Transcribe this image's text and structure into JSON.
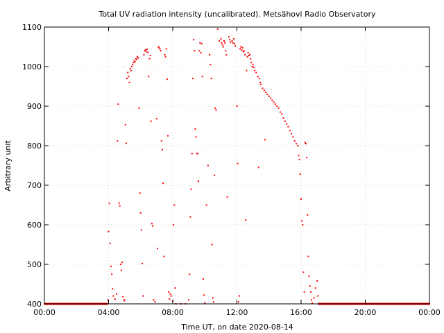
{
  "chart_data": {
    "type": "scatter",
    "title": "Total UV radiation intensity (uncalibrated). Metsähovi Radio Observatory",
    "xlabel": "Time UT, on date 2020-08-14",
    "ylabel": "Arbitrary unit",
    "xlim": [
      0,
      24
    ],
    "ylim": [
      400,
      1100
    ],
    "x_tick_values": [
      0,
      4,
      8,
      12,
      16,
      20,
      24
    ],
    "x_tick_labels": [
      "00:00",
      "04:00",
      "08:00",
      "12:00",
      "16:00",
      "20:00",
      "00:00"
    ],
    "y_tick_values": [
      400,
      500,
      600,
      700,
      800,
      900,
      1000,
      1100
    ],
    "y_tick_labels": [
      "400",
      "500",
      "600",
      "700",
      "800",
      "900",
      "1000",
      "1100"
    ],
    "grid": true,
    "marker_color": "#ff0000",
    "series": [
      {
        "points": [
          [
            0.0,
            400
          ],
          [
            0.5,
            400
          ],
          [
            1.0,
            400
          ],
          [
            1.5,
            400
          ],
          [
            2.0,
            400
          ],
          [
            2.5,
            400
          ],
          [
            3.0,
            400
          ],
          [
            3.5,
            400
          ],
          [
            3.9,
            400
          ],
          [
            3.95,
            410
          ],
          [
            4.0,
            583
          ],
          [
            4.05,
            654
          ],
          [
            4.1,
            553
          ],
          [
            4.15,
            495
          ],
          [
            4.2,
            475
          ],
          [
            4.25,
            438
          ],
          [
            4.3,
            420
          ],
          [
            4.4,
            412
          ],
          [
            4.5,
            425
          ],
          [
            4.55,
            812
          ],
          [
            4.6,
            905
          ],
          [
            4.65,
            655
          ],
          [
            4.7,
            648
          ],
          [
            4.75,
            500
          ],
          [
            4.8,
            485
          ],
          [
            4.85,
            505
          ],
          [
            4.9,
            418
          ],
          [
            4.95,
            408
          ],
          [
            5.0,
            410
          ],
          [
            5.05,
            853
          ],
          [
            5.1,
            806
          ],
          [
            5.15,
            970
          ],
          [
            5.2,
            985
          ],
          [
            5.25,
            975
          ],
          [
            5.3,
            960
          ],
          [
            5.35,
            995
          ],
          [
            5.4,
            990
          ],
          [
            5.45,
            1000
          ],
          [
            5.5,
            1005
          ],
          [
            5.55,
            1010
          ],
          [
            5.6,
            1015
          ],
          [
            5.65,
            1012
          ],
          [
            5.7,
            1020
          ],
          [
            5.75,
            1018
          ],
          [
            5.8,
            1025
          ],
          [
            5.85,
            1022
          ],
          [
            5.9,
            895
          ],
          [
            5.95,
            680
          ],
          [
            6.0,
            630
          ],
          [
            6.05,
            587
          ],
          [
            6.1,
            502
          ],
          [
            6.15,
            420
          ],
          [
            6.2,
            1030
          ],
          [
            6.25,
            1040
          ],
          [
            6.3,
            1042
          ],
          [
            6.35,
            1038
          ],
          [
            6.4,
            1044
          ],
          [
            6.45,
            1036
          ],
          [
            6.5,
            975
          ],
          [
            6.55,
            1020
          ],
          [
            6.6,
            1028
          ],
          [
            6.65,
            862
          ],
          [
            6.7,
            603
          ],
          [
            6.75,
            597
          ],
          [
            6.8,
            410
          ],
          [
            6.9,
            405
          ],
          [
            7.0,
            868
          ],
          [
            7.05,
            540
          ],
          [
            7.1,
            1050
          ],
          [
            7.15,
            1048
          ],
          [
            7.2,
            1045
          ],
          [
            7.25,
            1040
          ],
          [
            7.3,
            812
          ],
          [
            7.35,
            790
          ],
          [
            7.4,
            705
          ],
          [
            7.45,
            520
          ],
          [
            7.5,
            1030
          ],
          [
            7.55,
            1025
          ],
          [
            7.6,
            1045
          ],
          [
            7.65,
            968
          ],
          [
            7.7,
            825
          ],
          [
            7.75,
            430
          ],
          [
            7.8,
            412
          ],
          [
            7.85,
            425
          ],
          [
            7.9,
            420
          ],
          [
            8.0,
            407
          ],
          [
            8.05,
            600
          ],
          [
            8.1,
            650
          ],
          [
            8.15,
            440
          ],
          [
            8.2,
            400
          ],
          [
            8.5,
            400
          ],
          [
            8.8,
            400
          ],
          [
            9.0,
            410
          ],
          [
            9.05,
            475
          ],
          [
            9.1,
            620
          ],
          [
            9.15,
            690
          ],
          [
            9.2,
            780
          ],
          [
            9.25,
            970
          ],
          [
            9.3,
            1068
          ],
          [
            9.35,
            1040
          ],
          [
            9.4,
            842
          ],
          [
            9.45,
            822
          ],
          [
            9.5,
            780
          ],
          [
            9.55,
            780
          ],
          [
            9.6,
            710
          ],
          [
            9.65,
            1040
          ],
          [
            9.7,
            1060
          ],
          [
            9.75,
            1035
          ],
          [
            9.8,
            1058
          ],
          [
            9.85,
            975
          ],
          [
            9.9,
            463
          ],
          [
            9.95,
            422
          ],
          [
            10.0,
            402
          ],
          [
            10.1,
            650
          ],
          [
            10.2,
            750
          ],
          [
            10.3,
            1030
          ],
          [
            10.35,
            1005
          ],
          [
            10.4,
            970
          ],
          [
            10.45,
            550
          ],
          [
            10.5,
            415
          ],
          [
            10.55,
            405
          ],
          [
            10.6,
            725
          ],
          [
            10.65,
            895
          ],
          [
            10.7,
            890
          ],
          [
            10.8,
            1095
          ],
          [
            10.9,
            1065
          ],
          [
            11.0,
            1070
          ],
          [
            11.05,
            1060
          ],
          [
            11.1,
            1055
          ],
          [
            11.15,
            1050
          ],
          [
            11.2,
            1065
          ],
          [
            11.25,
            1060
          ],
          [
            11.3,
            1040
          ],
          [
            11.35,
            1030
          ],
          [
            11.4,
            670
          ],
          [
            11.5,
            1075
          ],
          [
            11.55,
            1068
          ],
          [
            11.6,
            1062
          ],
          [
            11.7,
            1065
          ],
          [
            11.75,
            1060
          ],
          [
            11.8,
            1070
          ],
          [
            11.85,
            1058
          ],
          [
            11.9,
            1052
          ],
          [
            12.0,
            900
          ],
          [
            12.05,
            755
          ],
          [
            12.1,
            405
          ],
          [
            12.15,
            420
          ],
          [
            12.2,
            1045
          ],
          [
            12.25,
            1050
          ],
          [
            12.3,
            1042
          ],
          [
            12.35,
            1048
          ],
          [
            12.4,
            1038
          ],
          [
            12.45,
            1040
          ],
          [
            12.5,
            1030
          ],
          [
            12.55,
            612
          ],
          [
            12.6,
            990
          ],
          [
            12.65,
            1025
          ],
          [
            12.7,
            1035
          ],
          [
            12.75,
            1028
          ],
          [
            12.8,
            1030
          ],
          [
            12.85,
            1020
          ],
          [
            12.9,
            1010
          ],
          [
            12.95,
            1000
          ],
          [
            13.0,
            1005
          ],
          [
            13.05,
            998
          ],
          [
            13.1,
            990
          ],
          [
            13.2,
            985
          ],
          [
            13.3,
            975
          ],
          [
            13.35,
            745
          ],
          [
            13.4,
            970
          ],
          [
            13.45,
            960
          ],
          [
            13.5,
            955
          ],
          [
            13.6,
            945
          ],
          [
            13.7,
            940
          ],
          [
            13.75,
            815
          ],
          [
            13.8,
            935
          ],
          [
            13.9,
            930
          ],
          [
            14.0,
            925
          ],
          [
            14.1,
            920
          ],
          [
            14.2,
            915
          ],
          [
            14.3,
            910
          ],
          [
            14.4,
            905
          ],
          [
            14.5,
            900
          ],
          [
            14.6,
            895
          ],
          [
            14.7,
            885
          ],
          [
            14.8,
            880
          ],
          [
            14.9,
            870
          ],
          [
            15.0,
            862
          ],
          [
            15.1,
            855
          ],
          [
            15.2,
            848
          ],
          [
            15.3,
            838
          ],
          [
            15.4,
            830
          ],
          [
            15.5,
            822
          ],
          [
            15.6,
            812
          ],
          [
            15.7,
            805
          ],
          [
            15.8,
            800
          ],
          [
            15.85,
            775
          ],
          [
            15.9,
            765
          ],
          [
            15.95,
            728
          ],
          [
            16.0,
            665
          ],
          [
            16.05,
            610
          ],
          [
            16.1,
            600
          ],
          [
            16.15,
            480
          ],
          [
            16.2,
            430
          ],
          [
            16.25,
            808
          ],
          [
            16.3,
            805
          ],
          [
            16.35,
            770
          ],
          [
            16.4,
            625
          ],
          [
            16.45,
            520
          ],
          [
            16.5,
            470
          ],
          [
            16.55,
            445
          ],
          [
            16.6,
            430
          ],
          [
            16.65,
            410
          ],
          [
            16.7,
            402
          ],
          [
            16.8,
            415
          ],
          [
            16.9,
            440
          ],
          [
            17.0,
            458
          ],
          [
            17.05,
            420
          ],
          [
            17.1,
            400
          ],
          [
            17.5,
            400
          ],
          [
            18.0,
            400
          ],
          [
            18.5,
            400
          ],
          [
            19.0,
            400
          ],
          [
            19.5,
            400
          ],
          [
            20.0,
            400
          ],
          [
            20.5,
            400
          ],
          [
            21.0,
            400
          ],
          [
            21.5,
            400
          ],
          [
            22.0,
            400
          ],
          [
            22.5,
            400
          ],
          [
            23.0,
            400
          ],
          [
            23.5,
            400
          ],
          [
            24.0,
            400
          ]
        ]
      }
    ]
  }
}
